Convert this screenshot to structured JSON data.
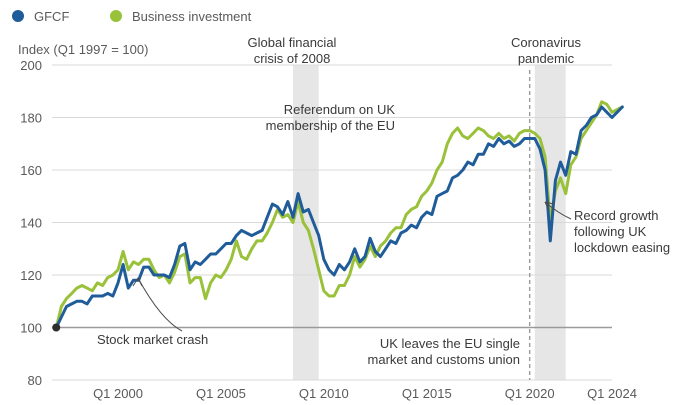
{
  "chart_data": {
    "type": "line",
    "ylabel": "Index (Q1 1997 = 100)",
    "ylim": [
      80,
      200
    ],
    "yticks": [
      "80",
      "100",
      "120",
      "140",
      "160",
      "180",
      "200"
    ],
    "xlim": [
      1997.0,
      2024.25
    ],
    "xticks": [
      {
        "x": 2000,
        "label": "Q1 2000"
      },
      {
        "x": 2005,
        "label": "Q1 2005"
      },
      {
        "x": 2010,
        "label": "Q1 2010"
      },
      {
        "x": 2015,
        "label": "Q1 2015"
      },
      {
        "x": 2020,
        "label": "Q1 2020"
      },
      {
        "x": 2024,
        "label": "Q1 2024"
      }
    ],
    "baseline": 100,
    "legend": [
      {
        "name": "GFCF",
        "color": "#1f5c99"
      },
      {
        "name": "Business investment",
        "color": "#99c13a"
      }
    ],
    "series": [
      {
        "name": "GFCF",
        "color": "#1f5c99",
        "points": [
          [
            1997.0,
            100
          ],
          [
            1997.25,
            104
          ],
          [
            1997.5,
            108
          ],
          [
            1997.75,
            109
          ],
          [
            1998.0,
            110
          ],
          [
            1998.25,
            110
          ],
          [
            1998.5,
            109
          ],
          [
            1998.75,
            112
          ],
          [
            1999.0,
            112
          ],
          [
            1999.25,
            112
          ],
          [
            1999.5,
            113
          ],
          [
            1999.75,
            112
          ],
          [
            2000.0,
            117
          ],
          [
            2000.25,
            124
          ],
          [
            2000.5,
            115
          ],
          [
            2000.75,
            118
          ],
          [
            2001.0,
            118
          ],
          [
            2001.25,
            123
          ],
          [
            2001.5,
            123
          ],
          [
            2001.75,
            120
          ],
          [
            2002.0,
            120
          ],
          [
            2002.25,
            120
          ],
          [
            2002.5,
            119
          ],
          [
            2002.75,
            124
          ],
          [
            2003.0,
            131
          ],
          [
            2003.25,
            132
          ],
          [
            2003.5,
            122
          ],
          [
            2003.75,
            125
          ],
          [
            2004.0,
            124
          ],
          [
            2004.25,
            126
          ],
          [
            2004.5,
            128
          ],
          [
            2004.75,
            128
          ],
          [
            2005.0,
            130
          ],
          [
            2005.25,
            132
          ],
          [
            2005.5,
            132
          ],
          [
            2005.75,
            135
          ],
          [
            2006.0,
            137
          ],
          [
            2006.25,
            136
          ],
          [
            2006.5,
            135
          ],
          [
            2006.75,
            136
          ],
          [
            2007.0,
            137
          ],
          [
            2007.25,
            142
          ],
          [
            2007.5,
            147
          ],
          [
            2007.75,
            146
          ],
          [
            2008.0,
            143
          ],
          [
            2008.25,
            148
          ],
          [
            2008.5,
            142
          ],
          [
            2008.75,
            151
          ],
          [
            2009.0,
            144
          ],
          [
            2009.25,
            145
          ],
          [
            2009.5,
            140
          ],
          [
            2009.75,
            135
          ],
          [
            2010.0,
            126
          ],
          [
            2010.25,
            122
          ],
          [
            2010.5,
            120
          ],
          [
            2010.75,
            124
          ],
          [
            2011.0,
            122
          ],
          [
            2011.25,
            125
          ],
          [
            2011.5,
            130
          ],
          [
            2011.75,
            125
          ],
          [
            2012.0,
            127
          ],
          [
            2012.25,
            134
          ],
          [
            2012.5,
            129
          ],
          [
            2012.75,
            127
          ],
          [
            2013.0,
            130
          ],
          [
            2013.25,
            133
          ],
          [
            2013.5,
            132
          ],
          [
            2013.75,
            136
          ],
          [
            2014.0,
            137
          ],
          [
            2014.25,
            139
          ],
          [
            2014.5,
            138
          ],
          [
            2014.75,
            142
          ],
          [
            2015.0,
            144
          ],
          [
            2015.25,
            143
          ],
          [
            2015.5,
            150
          ],
          [
            2015.75,
            151
          ],
          [
            2016.0,
            152
          ],
          [
            2016.25,
            157
          ],
          [
            2016.5,
            158
          ],
          [
            2016.75,
            160
          ],
          [
            2017.0,
            163
          ],
          [
            2017.25,
            162
          ],
          [
            2017.5,
            166
          ],
          [
            2017.75,
            166
          ],
          [
            2018.0,
            170
          ],
          [
            2018.25,
            169
          ],
          [
            2018.5,
            172
          ],
          [
            2018.75,
            170
          ],
          [
            2019.0,
            171
          ],
          [
            2019.25,
            169
          ],
          [
            2019.5,
            170
          ],
          [
            2019.75,
            172
          ],
          [
            2020.0,
            172
          ],
          [
            2020.25,
            172
          ],
          [
            2020.5,
            168
          ],
          [
            2020.75,
            160
          ],
          [
            2021.0,
            133
          ],
          [
            2021.25,
            156
          ],
          [
            2021.5,
            163
          ],
          [
            2021.75,
            158
          ],
          [
            2022.0,
            167
          ],
          [
            2022.25,
            166
          ],
          [
            2022.5,
            175
          ],
          [
            2022.75,
            177
          ],
          [
            2023.0,
            180
          ],
          [
            2023.25,
            181
          ],
          [
            2023.5,
            184
          ],
          [
            2023.75,
            182
          ],
          [
            2024.0,
            180
          ],
          [
            2024.25,
            182
          ],
          [
            2024.5,
            184
          ]
        ]
      },
      {
        "name": "Business investment",
        "color": "#99c13a",
        "points": [
          [
            1997.0,
            100
          ],
          [
            1997.25,
            108
          ],
          [
            1997.5,
            111
          ],
          [
            1997.75,
            113
          ],
          [
            1998.0,
            115
          ],
          [
            1998.25,
            116
          ],
          [
            1998.5,
            115
          ],
          [
            1998.75,
            114
          ],
          [
            1999.0,
            117
          ],
          [
            1999.25,
            116
          ],
          [
            1999.5,
            119
          ],
          [
            1999.75,
            120
          ],
          [
            2000.0,
            122
          ],
          [
            2000.25,
            129
          ],
          [
            2000.5,
            122
          ],
          [
            2000.75,
            125
          ],
          [
            2001.0,
            124
          ],
          [
            2001.25,
            126
          ],
          [
            2001.5,
            126
          ],
          [
            2001.75,
            122
          ],
          [
            2002.0,
            119
          ],
          [
            2002.25,
            120
          ],
          [
            2002.5,
            117
          ],
          [
            2002.75,
            121
          ],
          [
            2003.0,
            127
          ],
          [
            2003.25,
            128
          ],
          [
            2003.5,
            117
          ],
          [
            2003.75,
            119
          ],
          [
            2004.0,
            119
          ],
          [
            2004.25,
            111
          ],
          [
            2004.5,
            117
          ],
          [
            2004.75,
            120
          ],
          [
            2005.0,
            119
          ],
          [
            2005.25,
            122
          ],
          [
            2005.5,
            126
          ],
          [
            2005.75,
            133
          ],
          [
            2006.0,
            127
          ],
          [
            2006.25,
            126
          ],
          [
            2006.5,
            130
          ],
          [
            2006.75,
            133
          ],
          [
            2007.0,
            133
          ],
          [
            2007.25,
            136
          ],
          [
            2007.5,
            140
          ],
          [
            2007.75,
            145
          ],
          [
            2008.0,
            142
          ],
          [
            2008.25,
            143
          ],
          [
            2008.5,
            140
          ],
          [
            2008.75,
            148
          ],
          [
            2009.0,
            140
          ],
          [
            2009.25,
            137
          ],
          [
            2009.5,
            130
          ],
          [
            2009.75,
            122
          ],
          [
            2010.0,
            114
          ],
          [
            2010.25,
            112
          ],
          [
            2010.5,
            112
          ],
          [
            2010.75,
            116
          ],
          [
            2011.0,
            116
          ],
          [
            2011.25,
            120
          ],
          [
            2011.5,
            127
          ],
          [
            2011.75,
            123
          ],
          [
            2012.0,
            126
          ],
          [
            2012.25,
            131
          ],
          [
            2012.5,
            127
          ],
          [
            2012.75,
            131
          ],
          [
            2013.0,
            133
          ],
          [
            2013.25,
            136
          ],
          [
            2013.5,
            138
          ],
          [
            2013.75,
            138
          ],
          [
            2014.0,
            143
          ],
          [
            2014.25,
            145
          ],
          [
            2014.5,
            146
          ],
          [
            2014.75,
            150
          ],
          [
            2015.0,
            152
          ],
          [
            2015.25,
            155
          ],
          [
            2015.5,
            160
          ],
          [
            2015.75,
            163
          ],
          [
            2016.0,
            170
          ],
          [
            2016.25,
            174
          ],
          [
            2016.5,
            176
          ],
          [
            2016.75,
            173
          ],
          [
            2017.0,
            172
          ],
          [
            2017.25,
            174
          ],
          [
            2017.5,
            176
          ],
          [
            2017.75,
            175
          ],
          [
            2018.0,
            173
          ],
          [
            2018.25,
            172
          ],
          [
            2018.5,
            174
          ],
          [
            2018.75,
            172
          ],
          [
            2019.0,
            173
          ],
          [
            2019.25,
            171
          ],
          [
            2019.5,
            174
          ],
          [
            2019.75,
            175
          ],
          [
            2020.0,
            175
          ],
          [
            2020.25,
            174
          ],
          [
            2020.5,
            172
          ],
          [
            2020.75,
            165
          ],
          [
            2021.0,
            140
          ],
          [
            2021.25,
            152
          ],
          [
            2021.5,
            157
          ],
          [
            2021.75,
            151
          ],
          [
            2022.0,
            162
          ],
          [
            2022.25,
            165
          ],
          [
            2022.5,
            172
          ],
          [
            2022.75,
            175
          ],
          [
            2023.0,
            178
          ],
          [
            2023.25,
            181
          ],
          [
            2023.5,
            186
          ],
          [
            2023.75,
            185
          ],
          [
            2024.0,
            182
          ],
          [
            2024.25,
            183
          ],
          [
            2024.5,
            184
          ]
        ]
      }
    ],
    "shaded_periods": [
      {
        "start": 2008.5,
        "end": 2009.75,
        "label_lines": [
          "Global financial",
          "crisis of 2008"
        ]
      },
      {
        "start": 2020.25,
        "end": 2021.75,
        "label_lines": [
          "Coronavirus",
          "pandemic"
        ]
      }
    ],
    "vertical_marker": {
      "x": 2020.0,
      "style": "dashed"
    },
    "annotations": [
      {
        "name": "referendum",
        "lines": [
          "Referendum on UK",
          "membership of the EU"
        ]
      },
      {
        "name": "stock-market-crash",
        "lines": [
          "Stock market crash"
        ]
      },
      {
        "name": "eu-single-market",
        "lines": [
          "UK leaves the EU single",
          "market and customs union"
        ]
      },
      {
        "name": "record-growth",
        "lines": [
          "Record growth",
          "following UK",
          "lockdown easing"
        ]
      }
    ]
  }
}
